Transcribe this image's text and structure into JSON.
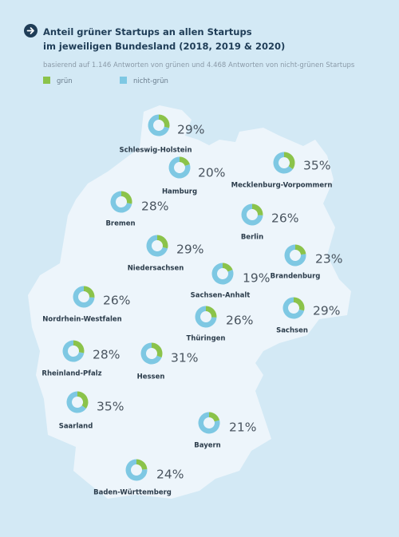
{
  "title_line1": "Anteil grüner Startups an allen Startups",
  "title_line2": "im jeweiligen Bundesland (2018, 2019 & 2020)",
  "subtitle": "basierend auf 1.146 Antworten von grünen und 4.468 Antworten von nicht-grünen Startups",
  "legend": [
    {
      "label": "grün",
      "color": "#8bc34a"
    },
    {
      "label": "nicht-grün",
      "color": "#7ec8e3"
    }
  ],
  "colors": {
    "green": "#8bc34a",
    "nongreen": "#7ec8e3",
    "map": "#edf5fb",
    "background": "#d3e9f5"
  },
  "chart_data": {
    "type": "pie",
    "series_names": [
      "grün",
      "nicht-grün"
    ],
    "values_unit": "% grün",
    "states": [
      {
        "name": "Schleswig-Holstein",
        "value": 29,
        "label": "29%"
      },
      {
        "name": "Hamburg",
        "value": 20,
        "label": "20%"
      },
      {
        "name": "Mecklenburg-Vorpommern",
        "value": 35,
        "label": "35%"
      },
      {
        "name": "Bremen",
        "value": 28,
        "label": "28%"
      },
      {
        "name": "Berlin",
        "value": 26,
        "label": "26%"
      },
      {
        "name": "Niedersachsen",
        "value": 29,
        "label": "29%"
      },
      {
        "name": "Brandenburg",
        "value": 23,
        "label": "23%"
      },
      {
        "name": "Sachsen-Anhalt",
        "value": 19,
        "label": "19%"
      },
      {
        "name": "Nordrhein-Westfalen",
        "value": 26,
        "label": "26%"
      },
      {
        "name": "Sachsen",
        "value": 29,
        "label": "29%"
      },
      {
        "name": "Thüringen",
        "value": 26,
        "label": "26%"
      },
      {
        "name": "Rheinland-Pfalz",
        "value": 28,
        "label": "28%"
      },
      {
        "name": "Hessen",
        "value": 31,
        "label": "31%"
      },
      {
        "name": "Saarland",
        "value": 35,
        "label": "35%"
      },
      {
        "name": "Bayern",
        "value": 21,
        "label": "21%"
      },
      {
        "name": "Baden-Württemberg",
        "value": 24,
        "label": "24%"
      }
    ]
  }
}
